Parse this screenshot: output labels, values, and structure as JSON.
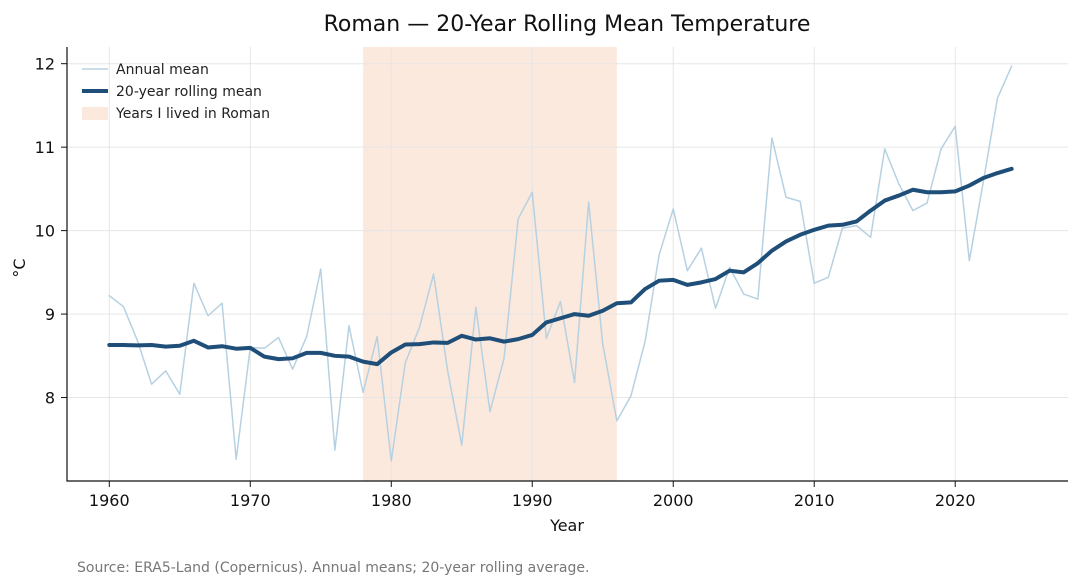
{
  "chart_data": {
    "type": "line",
    "title": "Roman — 20-Year Rolling Mean Temperature",
    "xlabel": "Year",
    "ylabel": "°C",
    "source": "Source: ERA5-Land (Copernicus). Annual means; 20-year rolling average.",
    "xlim": [
      1957,
      2028
    ],
    "ylim": [
      7.0,
      12.2
    ],
    "x_ticks": [
      1960,
      1970,
      1980,
      1990,
      2000,
      2010,
      2020
    ],
    "y_ticks": [
      8,
      9,
      10,
      11,
      12
    ],
    "grid": true,
    "legend_position": "top-left",
    "x": [
      1960,
      1961,
      1962,
      1963,
      1964,
      1965,
      1966,
      1967,
      1968,
      1969,
      1970,
      1971,
      1972,
      1973,
      1974,
      1975,
      1976,
      1977,
      1978,
      1979,
      1980,
      1981,
      1982,
      1983,
      1984,
      1985,
      1986,
      1987,
      1988,
      1989,
      1990,
      1991,
      1992,
      1993,
      1994,
      1995,
      1996,
      1997,
      1998,
      1999,
      2000,
      2001,
      2002,
      2003,
      2004,
      2005,
      2006,
      2007,
      2008,
      2009,
      2010,
      2011,
      2012,
      2013,
      2014,
      2015,
      2016,
      2017,
      2018,
      2019,
      2020,
      2021,
      2022,
      2023,
      2024
    ],
    "series": [
      {
        "name": "Annual mean",
        "color": "#b6d1e2",
        "values": [
          9.22,
          9.09,
          8.68,
          8.16,
          8.32,
          8.04,
          9.37,
          8.98,
          9.13,
          7.26,
          8.6,
          8.59,
          8.72,
          8.34,
          8.73,
          9.54,
          7.37,
          8.86,
          8.06,
          8.73,
          7.24,
          8.42,
          8.84,
          9.48,
          8.32,
          7.43,
          9.08,
          7.83,
          8.47,
          10.14,
          10.46,
          8.71,
          9.15,
          8.18,
          10.34,
          8.64,
          7.72,
          8.02,
          8.67,
          9.71,
          10.26,
          9.52,
          9.79,
          9.07,
          9.56,
          9.24,
          9.18,
          11.11,
          10.4,
          10.35,
          9.37,
          9.44,
          10.03,
          10.06,
          9.92,
          10.98,
          10.56,
          10.24,
          10.33,
          10.98,
          11.25,
          9.64,
          10.59,
          11.59,
          11.97
        ]
      },
      {
        "name": "20-year rolling mean",
        "color": "#1f4e79",
        "values": [
          8.63,
          8.63,
          8.625,
          8.63,
          8.61,
          8.62,
          8.68,
          8.6,
          8.615,
          8.585,
          8.595,
          8.49,
          8.46,
          8.47,
          8.535,
          8.535,
          8.5,
          8.49,
          8.43,
          8.4,
          8.54,
          8.635,
          8.64,
          8.66,
          8.655,
          8.74,
          8.695,
          8.71,
          8.67,
          8.7,
          8.75,
          8.9,
          8.95,
          9.0,
          8.98,
          9.04,
          9.13,
          9.14,
          9.3,
          9.4,
          9.41,
          9.35,
          9.38,
          9.42,
          9.52,
          9.5,
          9.61,
          9.76,
          9.87,
          9.95,
          10.01,
          10.06,
          10.07,
          10.11,
          10.24,
          10.36,
          10.42,
          10.49,
          10.46,
          10.46,
          10.47,
          10.54,
          10.63,
          10.69,
          10.74
        ]
      }
    ],
    "shaded_region": {
      "label": "Years I lived in Roman",
      "x_start": 1978,
      "x_end": 1996,
      "color": "#fbe9de"
    }
  }
}
